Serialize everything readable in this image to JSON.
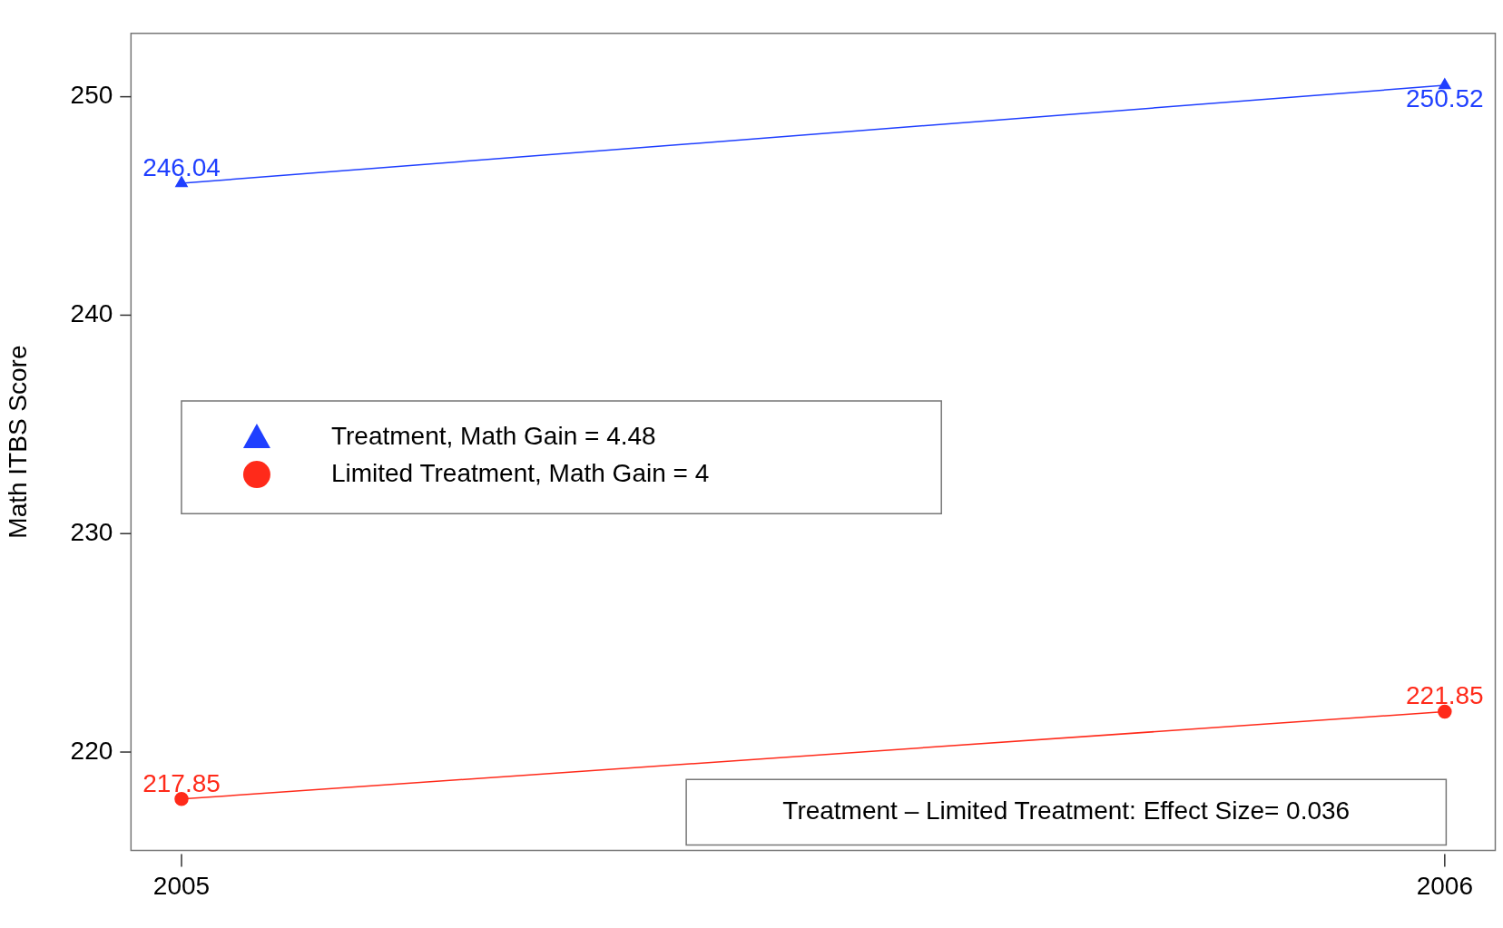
{
  "chart_data": {
    "type": "line",
    "ylabel": "Math ITBS Score",
    "x": [
      2005,
      2006
    ],
    "xlim": [
      2004.96,
      2006.04
    ],
    "xticks": [
      2005,
      2006
    ],
    "ylim": [
      215.5,
      252.9
    ],
    "yticks": [
      220,
      230,
      240,
      250
    ],
    "series": [
      {
        "name": "Treatment, Math Gain = 4.48",
        "color": "#1f3fff",
        "marker": "triangle",
        "values": [
          246.04,
          250.52
        ]
      },
      {
        "name": "Limited Treatment, Math Gain = 4",
        "color": "#ff2a1a",
        "marker": "circle",
        "values": [
          217.85,
          221.85
        ]
      }
    ],
    "data_labels": true,
    "grid": false,
    "legend": "left",
    "line_style": "solid",
    "annotations": [
      "Treatment – Limited Treatment: Effect Size= 0.036"
    ]
  }
}
